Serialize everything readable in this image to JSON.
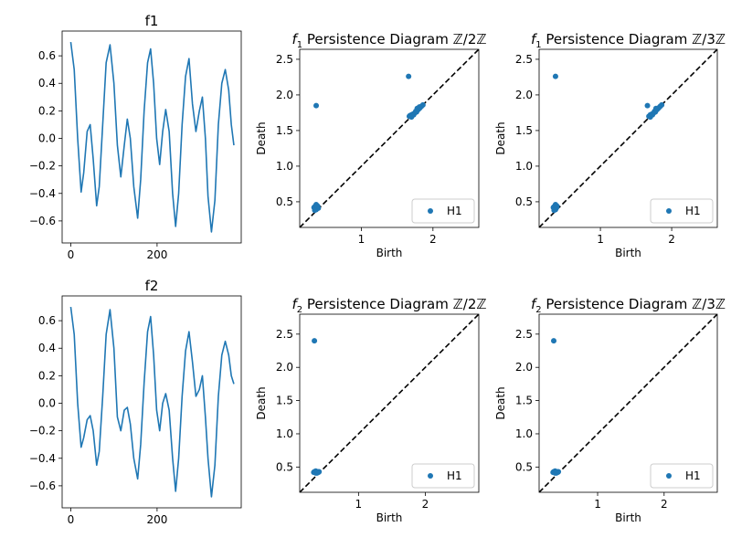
{
  "chart_data": [
    {
      "id": "f1",
      "type": "line",
      "title": "f1",
      "xlabel": "",
      "ylabel": "",
      "xlim": [
        -20,
        395
      ],
      "ylim": [
        -0.76,
        0.78
      ],
      "xticks": [
        0,
        200
      ],
      "yticks": [
        -0.6,
        -0.4,
        -0.2,
        0.0,
        0.2,
        0.4,
        0.6
      ],
      "ytick_labels": [
        "−0.6",
        "−0.4",
        "−0.2",
        "0.0",
        "0.2",
        "0.4",
        "0.6"
      ],
      "color": "#1f77b4",
      "series": [
        {
          "x": [
            0,
            8,
            16,
            24,
            30,
            38,
            45,
            52,
            60,
            66,
            74,
            82,
            91,
            100,
            108,
            116,
            124,
            131,
            138,
            146,
            155,
            162,
            170,
            178,
            185,
            192,
            199,
            206,
            213,
            220,
            228,
            236,
            243,
            250,
            258,
            266,
            274,
            282,
            290,
            298,
            305,
            312,
            318,
            326,
            334,
            342,
            350,
            358,
            366,
            372,
            378
          ],
          "y": [
            0.7,
            0.5,
            0.0,
            -0.39,
            -0.25,
            0.05,
            0.1,
            -0.15,
            -0.49,
            -0.35,
            0.1,
            0.55,
            0.68,
            0.4,
            -0.05,
            -0.28,
            -0.05,
            0.14,
            0.0,
            -0.35,
            -0.58,
            -0.3,
            0.2,
            0.55,
            0.65,
            0.4,
            0.0,
            -0.19,
            0.05,
            0.21,
            0.05,
            -0.4,
            -0.64,
            -0.4,
            0.1,
            0.45,
            0.58,
            0.25,
            0.05,
            0.2,
            0.3,
            0.0,
            -0.42,
            -0.68,
            -0.45,
            0.1,
            0.4,
            0.5,
            0.35,
            0.1,
            -0.05
          ]
        }
      ]
    },
    {
      "id": "f1z2",
      "type": "scatter",
      "title_prefix": "f",
      "title_sub": "1",
      "title_rest": " Persistence Diagram ℤ/2ℤ",
      "xlabel": "Birth",
      "ylabel": "Death",
      "xlim": [
        0.14,
        2.64
      ],
      "ylim": [
        0.14,
        2.64
      ],
      "xticks": [
        1,
        2
      ],
      "yticks": [
        0.5,
        1.0,
        1.5,
        2.0,
        2.5
      ],
      "ytick_labels": [
        "0.5",
        "1.0",
        "1.5",
        "2.0",
        "2.5"
      ],
      "diagonal": true,
      "legend": {
        "label": "H1",
        "loc": "lower right"
      },
      "color": "#1f77b4",
      "series": [
        {
          "name": "H1",
          "x": [
            0.34,
            0.35,
            0.36,
            0.37,
            0.38,
            0.36,
            0.37,
            0.38,
            0.39,
            0.4,
            0.35,
            0.37,
            0.39,
            0.37,
            1.66,
            1.67,
            1.68,
            1.7,
            1.72,
            1.74,
            1.75,
            1.77,
            1.78,
            1.8,
            1.82,
            1.84,
            1.86,
            1.7,
            1.73,
            1.76,
            1.78,
            1.81
          ],
          "y": [
            0.42,
            0.43,
            0.44,
            0.45,
            0.41,
            0.4,
            0.39,
            0.42,
            0.43,
            0.41,
            0.38,
            0.46,
            0.44,
            1.85,
            2.26,
            1.7,
            1.71,
            1.72,
            1.73,
            1.74,
            1.75,
            1.76,
            1.78,
            1.8,
            1.82,
            1.84,
            1.86,
            1.69,
            1.72,
            1.77,
            1.81,
            1.83
          ]
        }
      ]
    },
    {
      "id": "f1z3",
      "type": "scatter",
      "title_prefix": "f",
      "title_sub": "1",
      "title_rest": " Persistence Diagram ℤ/3ℤ",
      "xlabel": "Birth",
      "ylabel": "Death",
      "xlim": [
        0.14,
        2.64
      ],
      "ylim": [
        0.14,
        2.64
      ],
      "xticks": [
        1,
        2
      ],
      "yticks": [
        0.5,
        1.0,
        1.5,
        2.0,
        2.5
      ],
      "ytick_labels": [
        "0.5",
        "1.0",
        "1.5",
        "2.0",
        "2.5"
      ],
      "diagonal": true,
      "legend": {
        "label": "H1",
        "loc": "lower right"
      },
      "color": "#1f77b4",
      "series": [
        {
          "name": "H1",
          "x": [
            0.34,
            0.35,
            0.36,
            0.37,
            0.38,
            0.36,
            0.37,
            0.38,
            0.39,
            0.35,
            0.37,
            0.39,
            0.37,
            1.66,
            1.68,
            1.7,
            1.72,
            1.74,
            1.75,
            1.77,
            1.78,
            1.8,
            1.82,
            1.84,
            1.86,
            1.7,
            1.73,
            1.76,
            1.78
          ],
          "y": [
            0.42,
            0.43,
            0.44,
            0.45,
            0.41,
            0.4,
            0.39,
            0.42,
            0.43,
            0.38,
            0.46,
            0.44,
            2.26,
            1.85,
            1.7,
            1.72,
            1.73,
            1.74,
            1.75,
            1.76,
            1.78,
            1.8,
            1.82,
            1.84,
            1.86,
            1.69,
            1.72,
            1.77,
            1.81
          ]
        }
      ]
    },
    {
      "id": "f2",
      "type": "line",
      "title": "f2",
      "xlabel": "",
      "ylabel": "",
      "xlim": [
        -20,
        395
      ],
      "ylim": [
        -0.76,
        0.78
      ],
      "xticks": [
        0,
        200
      ],
      "yticks": [
        -0.6,
        -0.4,
        -0.2,
        0.0,
        0.2,
        0.4,
        0.6
      ],
      "ytick_labels": [
        "−0.6",
        "−0.4",
        "−0.2",
        "0.0",
        "0.2",
        "0.4",
        "0.6"
      ],
      "color": "#1f77b4",
      "series": [
        {
          "x": [
            0,
            8,
            16,
            24,
            30,
            38,
            45,
            52,
            60,
            66,
            74,
            82,
            91,
            100,
            108,
            116,
            124,
            131,
            138,
            146,
            155,
            162,
            170,
            178,
            185,
            192,
            199,
            206,
            213,
            220,
            228,
            236,
            243,
            250,
            258,
            266,
            274,
            282,
            290,
            298,
            305,
            312,
            318,
            326,
            334,
            342,
            350,
            358,
            366,
            372,
            378
          ],
          "y": [
            0.7,
            0.5,
            0.0,
            -0.32,
            -0.25,
            -0.12,
            -0.09,
            -0.2,
            -0.45,
            -0.35,
            0.05,
            0.5,
            0.68,
            0.4,
            -0.1,
            -0.2,
            -0.05,
            -0.03,
            -0.15,
            -0.4,
            -0.55,
            -0.3,
            0.15,
            0.52,
            0.63,
            0.35,
            -0.05,
            -0.2,
            0.0,
            0.07,
            -0.05,
            -0.4,
            -0.64,
            -0.4,
            0.05,
            0.38,
            0.52,
            0.3,
            0.05,
            0.1,
            0.2,
            -0.1,
            -0.4,
            -0.68,
            -0.45,
            0.05,
            0.35,
            0.45,
            0.35,
            0.2,
            0.14
          ]
        }
      ]
    },
    {
      "id": "f2z2",
      "type": "scatter",
      "title_prefix": "f",
      "title_sub": "2",
      "title_rest": " Persistence Diagram ℤ/2ℤ",
      "xlabel": "Birth",
      "ylabel": "Death",
      "xlim": [
        0.12,
        2.8
      ],
      "ylim": [
        0.12,
        2.8
      ],
      "xticks": [
        1,
        2
      ],
      "yticks": [
        0.5,
        1.0,
        1.5,
        2.0,
        2.5
      ],
      "ytick_labels": [
        "0.5",
        "1.0",
        "1.5",
        "2.0",
        "2.5"
      ],
      "diagonal": true,
      "legend": {
        "label": "H1",
        "loc": "lower right"
      },
      "color": "#1f77b4",
      "series": [
        {
          "name": "H1",
          "x": [
            0.33,
            0.34,
            0.35,
            0.36,
            0.37,
            0.38,
            0.39,
            0.4,
            0.41,
            0.36,
            0.38,
            0.34
          ],
          "y": [
            0.42,
            0.43,
            0.42,
            0.41,
            0.43,
            0.42,
            0.43,
            0.42,
            0.43,
            0.44,
            0.41,
            2.4
          ]
        }
      ]
    },
    {
      "id": "f2z3",
      "type": "scatter",
      "title_prefix": "f",
      "title_sub": "2",
      "title_rest": " Persistence Diagram ℤ/3ℤ",
      "xlabel": "Birth",
      "ylabel": "Death",
      "xlim": [
        0.12,
        2.8
      ],
      "ylim": [
        0.12,
        2.8
      ],
      "xticks": [
        1,
        2
      ],
      "yticks": [
        0.5,
        1.0,
        1.5,
        2.0,
        2.5
      ],
      "ytick_labels": [
        "0.5",
        "1.0",
        "1.5",
        "2.0",
        "2.5"
      ],
      "diagonal": true,
      "legend": {
        "label": "H1",
        "loc": "lower right"
      },
      "color": "#1f77b4",
      "series": [
        {
          "name": "H1",
          "x": [
            0.33,
            0.34,
            0.35,
            0.36,
            0.37,
            0.38,
            0.39,
            0.4,
            0.41,
            0.36,
            0.38,
            0.34
          ],
          "y": [
            0.42,
            0.43,
            0.42,
            0.41,
            0.43,
            0.42,
            0.43,
            0.42,
            0.43,
            0.44,
            0.41,
            2.4
          ]
        }
      ]
    }
  ]
}
